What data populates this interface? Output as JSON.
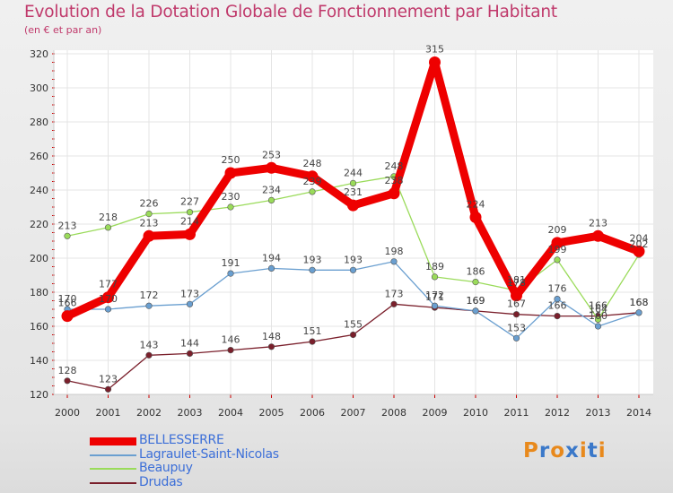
{
  "chart_data": {
    "type": "line",
    "title": "Evolution de la Dotation Globale de Fonctionnement par Habitant",
    "subtitle": "(en € et par an)",
    "xlabel": "",
    "ylabel": "",
    "ylim": [
      120,
      320
    ],
    "yticks": [
      120,
      140,
      160,
      180,
      200,
      220,
      240,
      260,
      280,
      300,
      320
    ],
    "categories": [
      "2000",
      "2001",
      "2002",
      "2003",
      "2004",
      "2005",
      "2006",
      "2007",
      "2008",
      "2009",
      "2010",
      "2011",
      "2012",
      "2013",
      "2014"
    ],
    "legend_position": "bottom-left",
    "series": [
      {
        "name": "Drudas",
        "color": "#7a1f2b",
        "values": [
          128,
          123,
          143,
          144,
          146,
          148,
          151,
          155,
          173,
          171,
          169,
          167,
          166,
          166,
          168
        ]
      },
      {
        "name": "Lagraulet-Saint-Nicolas",
        "color": "#6a9fd0",
        "values": [
          170,
          170,
          172,
          173,
          191,
          194,
          193,
          193,
          198,
          172,
          169,
          153,
          176,
          160,
          168
        ]
      },
      {
        "name": "Beaupuy",
        "color": "#9adb5a",
        "values": [
          213,
          218,
          226,
          227,
          230,
          234,
          239,
          244,
          248,
          189,
          186,
          181,
          199,
          164,
          202
        ]
      },
      {
        "name": "BELLESSERRE",
        "color": "#ee0000",
        "values": [
          166,
          177,
          213,
          214,
          250,
          253,
          248,
          231,
          238,
          315,
          224,
          178,
          209,
          213,
          204
        ]
      }
    ]
  },
  "legend": {
    "items": [
      {
        "name": "BELLESSERRE",
        "color": "#ee0000"
      },
      {
        "name": "Lagraulet-Saint-Nicolas",
        "color": "#6a9fd0"
      },
      {
        "name": "Beaupuy",
        "color": "#9adb5a"
      },
      {
        "name": "Drudas",
        "color": "#7a1f2b"
      }
    ]
  },
  "logo": {
    "text": "Proxiti",
    "letter_colors": [
      "#e8891c",
      "#3a78c9",
      "#e8891c",
      "#3a78c9",
      "#e8891c",
      "#3a78c9",
      "#e8891c"
    ]
  }
}
